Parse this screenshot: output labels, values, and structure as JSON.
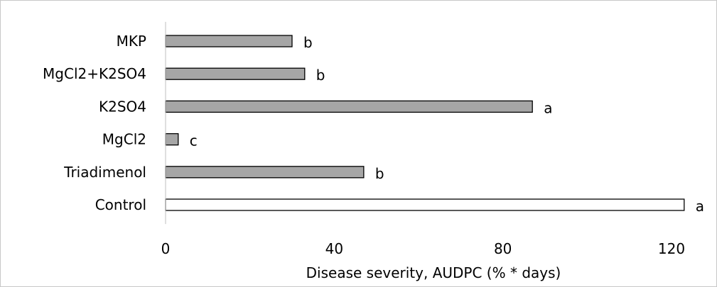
{
  "chart_data": {
    "type": "bar",
    "orientation": "horizontal",
    "title": "",
    "xlabel": "Disease severity, AUDPC (% * days)",
    "ylabel": "",
    "xlim": [
      0,
      120
    ],
    "xticks": [
      "0",
      "40",
      "80",
      "120"
    ],
    "grid": false,
    "legend": "none",
    "categories": [
      "MKP",
      "MgCl2+K2SO4",
      "K2SO4",
      "MgCl2",
      "Triadimenol",
      "Control"
    ],
    "values": [
      30,
      33,
      87,
      3,
      47,
      123
    ],
    "labels": [
      "b",
      "b",
      "a",
      "c",
      "b",
      "a"
    ],
    "colors": [
      "#a6a6a6",
      "#a6a6a6",
      "#a6a6a6",
      "#a6a6a6",
      "#a6a6a6",
      "#ffffff"
    ],
    "bar_edge_color": "#000000"
  }
}
